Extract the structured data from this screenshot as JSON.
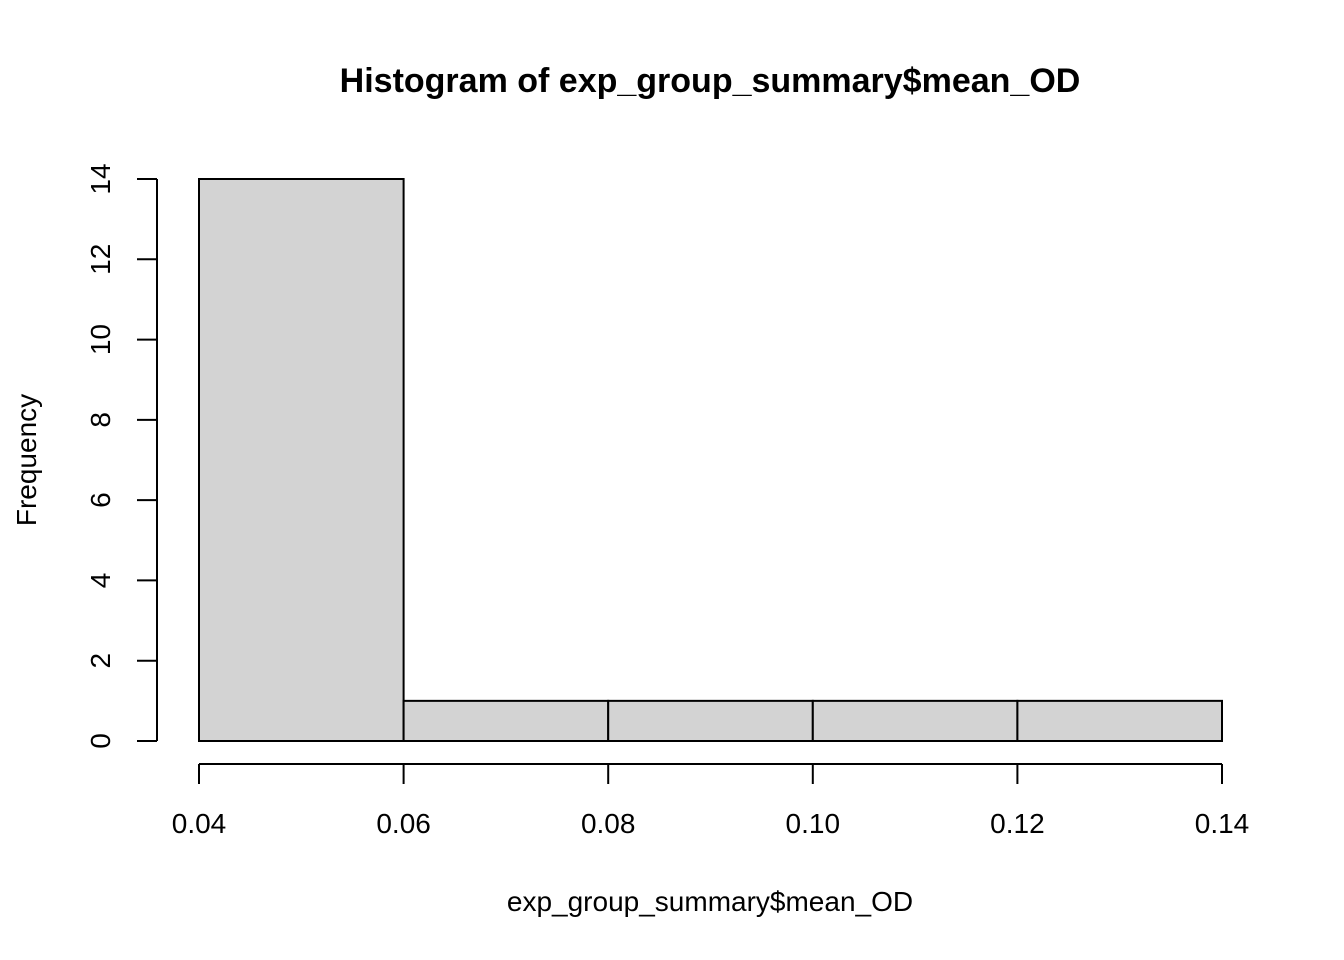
{
  "chart_data": {
    "type": "bar",
    "title": "Histogram of exp_group_summary$mean_OD",
    "xlabel": "exp_group_summary$mean_OD",
    "ylabel": "Frequency",
    "bins": [
      {
        "from": 0.04,
        "to": 0.06,
        "count": 14
      },
      {
        "from": 0.06,
        "to": 0.08,
        "count": 1
      },
      {
        "from": 0.08,
        "to": 0.1,
        "count": 1
      },
      {
        "from": 0.1,
        "to": 0.12,
        "count": 1
      },
      {
        "from": 0.12,
        "to": 0.14,
        "count": 1
      }
    ],
    "xticks": [
      0.04,
      0.06,
      0.08,
      0.1,
      0.12,
      0.14
    ],
    "xtick_labels": [
      "0.04",
      "0.06",
      "0.08",
      "0.10",
      "0.12",
      "0.14"
    ],
    "yticks": [
      0,
      2,
      4,
      6,
      8,
      10,
      12,
      14
    ],
    "ytick_labels": [
      "0",
      "2",
      "4",
      "6",
      "8",
      "10",
      "12",
      "14"
    ],
    "xlim": [
      0.04,
      0.14
    ],
    "ylim": [
      0,
      14
    ],
    "bar_color": "#d3d3d3",
    "grid": false
  }
}
